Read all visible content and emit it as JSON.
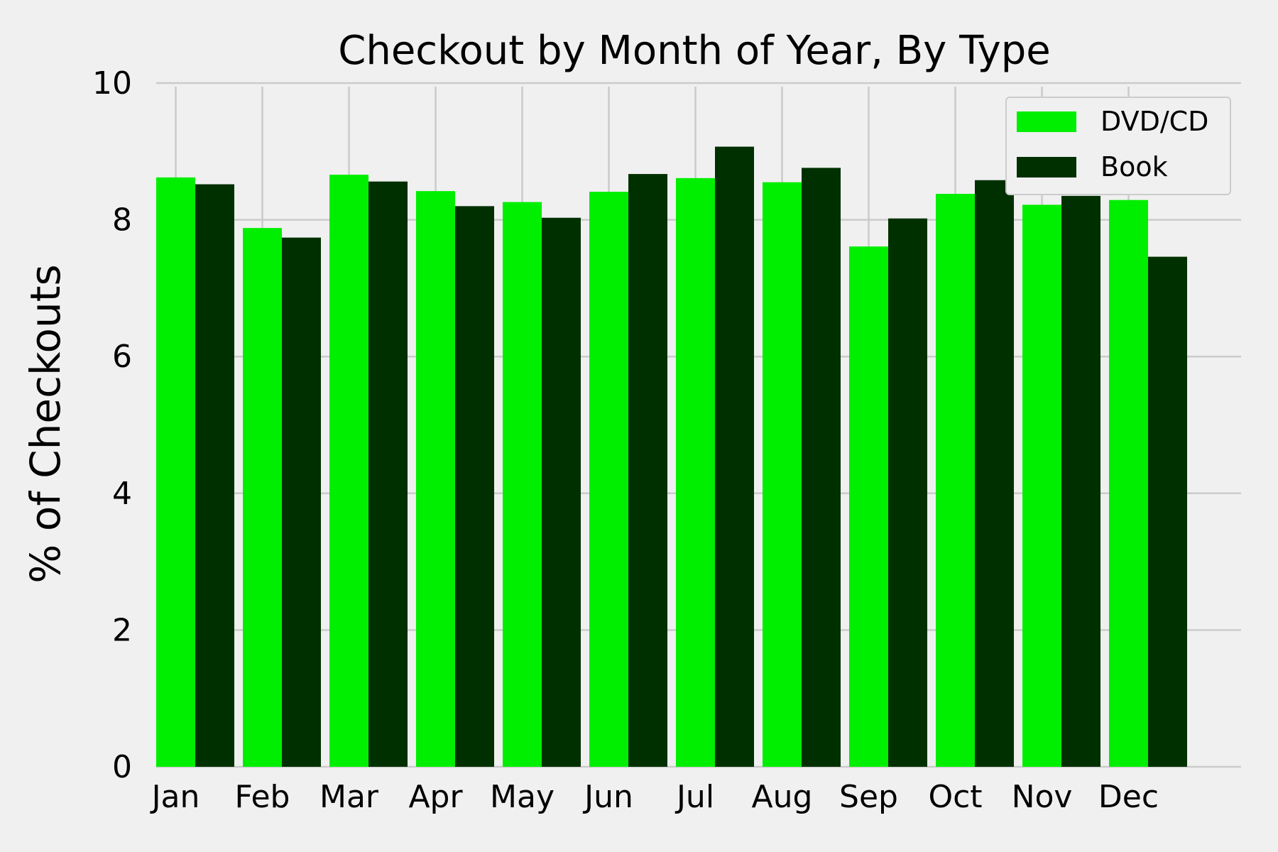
{
  "chart_data": {
    "type": "bar",
    "title": "Checkout by Month of Year, By Type",
    "xlabel": "",
    "ylabel": "% of Checkouts",
    "categories": [
      "Jan",
      "Feb",
      "Mar",
      "Apr",
      "May",
      "Jun",
      "Jul",
      "Aug",
      "Sep",
      "Oct",
      "Nov",
      "Dec"
    ],
    "series": [
      {
        "name": "DVD/CD",
        "color": "#00ee00",
        "values": [
          8.62,
          7.88,
          8.66,
          8.42,
          8.26,
          8.41,
          8.61,
          8.55,
          7.61,
          8.38,
          8.22,
          8.29
        ]
      },
      {
        "name": "Book",
        "color": "#003000",
        "values": [
          8.52,
          7.74,
          8.56,
          8.2,
          8.03,
          8.67,
          9.07,
          8.76,
          8.02,
          8.58,
          8.35,
          7.46
        ]
      }
    ],
    "ylim": [
      0,
      10
    ],
    "yticks": [
      0,
      2,
      4,
      6,
      8,
      10
    ],
    "grid": true,
    "legend_position": "top-right"
  }
}
